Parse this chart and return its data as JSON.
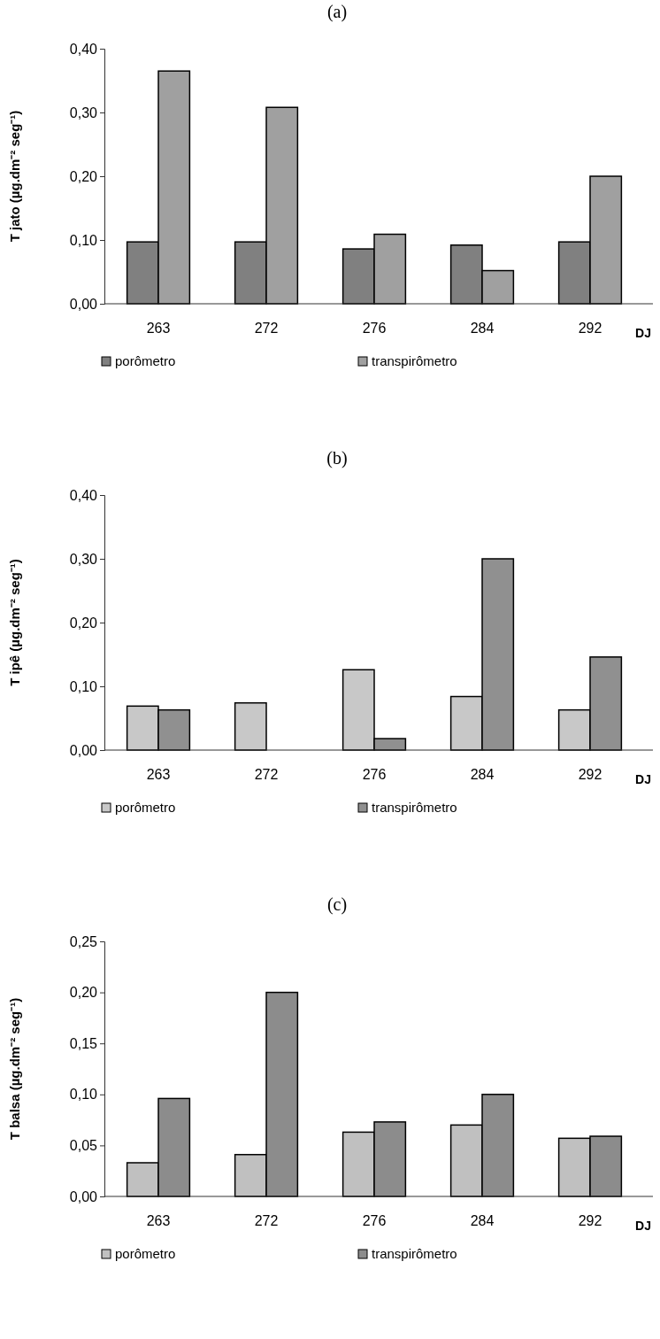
{
  "chart_data": [
    {
      "type": "bar",
      "title": "(a)",
      "xlabel": "DJ",
      "ylabel": "T jato (µg.dm⁻² seg⁻¹)",
      "categories": [
        "263",
        "272",
        "276",
        "284",
        "292"
      ],
      "series": [
        {
          "name": "porômetro",
          "color": "#808080",
          "values": [
            0.097,
            0.097,
            0.086,
            0.092,
            0.097
          ]
        },
        {
          "name": "transpirômetro",
          "color": "#a0a0a0",
          "values": [
            0.365,
            0.308,
            0.109,
            0.052,
            0.2
          ]
        }
      ],
      "ylim": [
        0,
        0.4
      ],
      "yticks": [
        {
          "value": 0,
          "label": "0,00"
        },
        {
          "value": 0.1,
          "label": "0,10"
        },
        {
          "value": 0.2,
          "label": "0,20"
        },
        {
          "value": 0.3,
          "label": "0,30"
        },
        {
          "value": 0.4,
          "label": "0,40"
        }
      ],
      "grid": false,
      "legend": "bottom"
    },
    {
      "type": "bar",
      "title": "(b)",
      "xlabel": "DJ",
      "ylabel": "T ipê (µg.dm⁻² seg⁻¹)",
      "categories": [
        "263",
        "272",
        "276",
        "284",
        "292"
      ],
      "series": [
        {
          "name": "porômetro",
          "color": "#c8c8c8",
          "values": [
            0.069,
            0.074,
            0.126,
            0.084,
            0.063
          ]
        },
        {
          "name": "transpirômetro",
          "color": "#909090",
          "values": [
            0.063,
            null,
            0.018,
            0.3,
            0.146
          ]
        }
      ],
      "ylim": [
        0,
        0.4
      ],
      "yticks": [
        {
          "value": 0,
          "label": "0,00"
        },
        {
          "value": 0.1,
          "label": "0,10"
        },
        {
          "value": 0.2,
          "label": "0,20"
        },
        {
          "value": 0.3,
          "label": "0,30"
        },
        {
          "value": 0.4,
          "label": "0,40"
        }
      ],
      "grid": false,
      "legend": "bottom"
    },
    {
      "type": "bar",
      "title": "(c)",
      "xlabel": "DJ",
      "ylabel": "T balsa (µg.dm⁻² seg⁻¹)",
      "categories": [
        "263",
        "272",
        "276",
        "284",
        "292"
      ],
      "series": [
        {
          "name": "porômetro",
          "color": "#c0c0c0",
          "values": [
            0.033,
            0.041,
            0.063,
            0.07,
            0.057
          ]
        },
        {
          "name": "transpirômetro",
          "color": "#8c8c8c",
          "values": [
            0.096,
            0.2,
            0.073,
            0.1,
            0.059
          ]
        }
      ],
      "ylim": [
        0,
        0.25
      ],
      "yticks": [
        {
          "value": 0,
          "label": "0,00"
        },
        {
          "value": 0.05,
          "label": "0,05"
        },
        {
          "value": 0.1,
          "label": "0,10"
        },
        {
          "value": 0.15,
          "label": "0,15"
        },
        {
          "value": 0.2,
          "label": "0,20"
        },
        {
          "value": 0.25,
          "label": "0,25"
        }
      ],
      "grid": false,
      "legend": "bottom"
    }
  ]
}
